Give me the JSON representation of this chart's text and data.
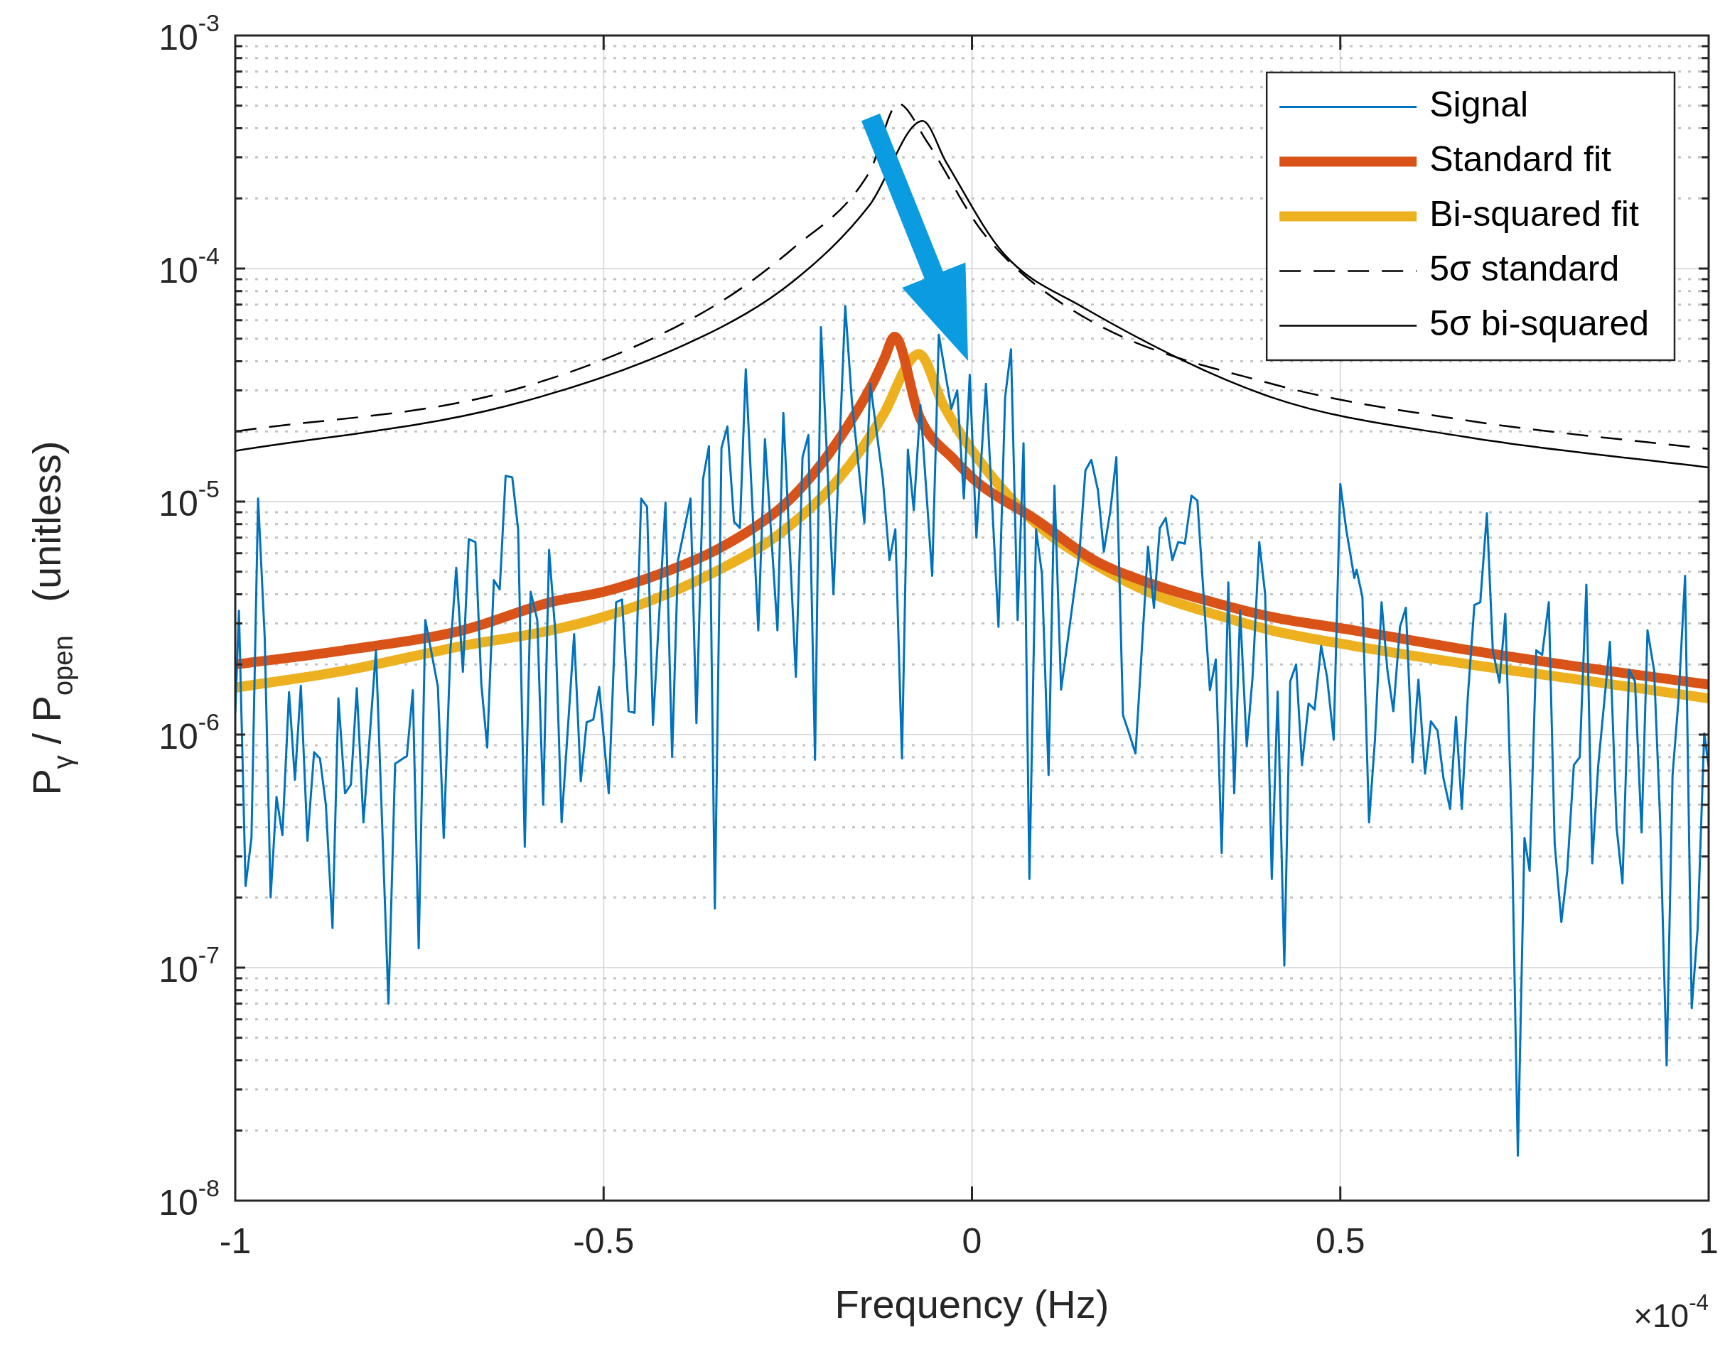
{
  "chart_data": {
    "type": "line",
    "xlabel": "Frequency (Hz)",
    "ylabel": "P$_{γ}$ / P$_{open}$   (unitless)",
    "annotations": [
      "×10$^{-4}$"
    ],
    "xlim": [
      -1,
      1
    ],
    "xticks": [
      -1,
      -0.5,
      0,
      0.5,
      1
    ],
    "ylim": [
      1e-08,
      0.001
    ],
    "yticks": [
      {
        "value": 1e-08,
        "label": "10$^{-8}$"
      },
      {
        "value": 2e-08,
        "label": null
      },
      {
        "value": 3e-08,
        "label": null
      },
      {
        "value": 4e-08,
        "label": null
      },
      {
        "value": 5e-08,
        "label": null
      },
      {
        "value": 6e-08,
        "label": null
      },
      {
        "value": 7e-08,
        "label": null
      },
      {
        "value": 8e-08,
        "label": null
      },
      {
        "value": 9e-08,
        "label": null
      },
      {
        "value": 1e-07,
        "label": "10$^{-7}$"
      },
      {
        "value": 2e-07,
        "label": null
      },
      {
        "value": 3e-07,
        "label": null
      },
      {
        "value": 4e-07,
        "label": null
      },
      {
        "value": 5e-07,
        "label": null
      },
      {
        "value": 6e-07,
        "label": null
      },
      {
        "value": 7e-07,
        "label": null
      },
      {
        "value": 8e-07,
        "label": null
      },
      {
        "value": 9e-07,
        "label": null
      },
      {
        "value": 1e-06,
        "label": "10$^{-6}$"
      },
      {
        "value": 2e-06,
        "label": null
      },
      {
        "value": 3e-06,
        "label": null
      },
      {
        "value": 4e-06,
        "label": null
      },
      {
        "value": 5e-06,
        "label": null
      },
      {
        "value": 6e-06,
        "label": null
      },
      {
        "value": 7e-06,
        "label": null
      },
      {
        "value": 8e-06,
        "label": null
      },
      {
        "value": 9e-06,
        "label": null
      },
      {
        "value": 1e-05,
        "label": "10$^{-5}$"
      },
      {
        "value": 2e-05,
        "label": null
      },
      {
        "value": 3e-05,
        "label": null
      },
      {
        "value": 4e-05,
        "label": null
      },
      {
        "value": 5e-05,
        "label": null
      },
      {
        "value": 6e-05,
        "label": null
      },
      {
        "value": 7e-05,
        "label": null
      },
      {
        "value": 8e-05,
        "label": null
      },
      {
        "value": 9e-05,
        "label": null
      },
      {
        "value": 0.0001,
        "label": "10$^{-4}$"
      },
      {
        "value": 0.0002,
        "label": null
      },
      {
        "value": 0.0003,
        "label": null
      },
      {
        "value": 0.0004,
        "label": null
      },
      {
        "value": 0.0005,
        "label": null
      },
      {
        "value": 0.0006,
        "label": null
      },
      {
        "value": 0.0007,
        "label": null
      },
      {
        "value": 0.0008,
        "label": null
      },
      {
        "value": 0.0009,
        "label": null
      },
      {
        "value": 0.001,
        "label": "10$^{-3}$"
      }
    ],
    "log": "y",
    "grid": true,
    "legend": "top right",
    "marker": "none",
    "series": [
      {
        "name": "Signal",
        "color": "#0072bd",
        "line_style": "solid",
        "x": [
          -1.0,
          -0.995,
          -0.986,
          -0.978,
          -0.969,
          -0.96,
          -0.952,
          -0.944,
          -0.936,
          -0.927,
          -0.919,
          -0.911,
          -0.902,
          -0.893,
          -0.885,
          -0.877,
          -0.868,
          -0.86,
          -0.851,
          -0.843,
          -0.835,
          -0.826,
          -0.809,
          -0.792,
          -0.783,
          -0.767,
          -0.759,
          -0.751,
          -0.742,
          -0.725,
          -0.717,
          -0.708,
          -0.7,
          -0.691,
          -0.683,
          -0.674,
          -0.666,
          -0.658,
          -0.649,
          -0.641,
          -0.633,
          -0.624,
          -0.616,
          -0.607,
          -0.599,
          -0.59,
          -0.582,
          -0.574,
          -0.565,
          -0.557,
          -0.54,
          -0.531,
          -0.523,
          -0.514,
          -0.506,
          -0.493,
          -0.483,
          -0.475,
          -0.466,
          -0.458,
          -0.449,
          -0.441,
          -0.433,
          -0.416,
          -0.407,
          -0.399,
          -0.382,
          -0.374,
          -0.365,
          -0.357,
          -0.349,
          -0.34,
          -0.332,
          -0.323,
          -0.315,
          -0.307,
          -0.29,
          -0.281,
          -0.264,
          -0.256,
          -0.239,
          -0.23,
          -0.222,
          -0.213,
          -0.205,
          -0.188,
          -0.172,
          -0.163,
          -0.146,
          -0.138,
          -0.121,
          -0.112,
          -0.104,
          -0.095,
          -0.087,
          -0.079,
          -0.07,
          -0.054,
          -0.045,
          -0.028,
          -0.02,
          -0.011,
          -0.003,
          0.006,
          0.019,
          0.036,
          0.045,
          0.053,
          0.062,
          0.07,
          0.078,
          0.087,
          0.095,
          0.104,
          0.112,
          0.121,
          0.129,
          0.146,
          0.154,
          0.162,
          0.171,
          0.179,
          0.188,
          0.196,
          0.205,
          0.213,
          0.222,
          0.239,
          0.247,
          0.255,
          0.263,
          0.272,
          0.28,
          0.289,
          0.298,
          0.306,
          0.323,
          0.331,
          0.339,
          0.348,
          0.356,
          0.364,
          0.373,
          0.381,
          0.39,
          0.398,
          0.407,
          0.415,
          0.424,
          0.432,
          0.44,
          0.448,
          0.457,
          0.465,
          0.474,
          0.482,
          0.491,
          0.5,
          0.508,
          0.519,
          0.522,
          0.53,
          0.539,
          0.547,
          0.556,
          0.564,
          0.572,
          0.581,
          0.589,
          0.598,
          0.606,
          0.615,
          0.623,
          0.632,
          0.64,
          0.649,
          0.657,
          0.665,
          0.673,
          0.682,
          0.69,
          0.699,
          0.707,
          0.716,
          0.724,
          0.733,
          0.741,
          0.75,
          0.757,
          0.766,
          0.774,
          0.783,
          0.791,
          0.8,
          0.808,
          0.817,
          0.825,
          0.834,
          0.842,
          0.85,
          0.866,
          0.875,
          0.883,
          0.892,
          0.9,
          0.909,
          0.917,
          0.926,
          0.934,
          0.943,
          0.951,
          0.959,
          0.968,
          0.977,
          0.985,
          0.994,
          1.0
        ],
        "values": [
          1.24e-06,
          3.4e-06,
          2.24e-07,
          3.6e-07,
          1.03e-05,
          2.6e-06,
          2e-07,
          5.4e-07,
          3.7e-07,
          1.52e-06,
          6.4e-07,
          1.62e-06,
          3.5e-07,
          8.4e-07,
          7.9e-07,
          5e-07,
          1.48e-07,
          1.43e-06,
          5.6e-07,
          6.1e-07,
          1.58e-06,
          4.2e-07,
          2.3e-06,
          7e-08,
          7.5e-07,
          8.1e-07,
          1.55e-06,
          1.21e-07,
          3.1e-06,
          1.61e-06,
          3.6e-07,
          2.3e-06,
          5.2e-06,
          1.86e-06,
          6.9e-06,
          6.7e-06,
          1.65e-06,
          8.8e-07,
          4.6e-06,
          4.2e-06,
          1.29e-05,
          1.27e-05,
          7.6e-06,
          3.3e-07,
          4.1e-06,
          3.1e-06,
          5e-07,
          6.2e-06,
          2.6e-06,
          4.2e-07,
          2.7e-06,
          6.3e-07,
          1.13e-06,
          1.16e-06,
          1.6e-06,
          5.6e-07,
          3.7e-06,
          3.8e-06,
          1.26e-06,
          1.24e-06,
          1.03e-05,
          9.5e-06,
          1.1e-06,
          9.9e-06,
          8e-07,
          5.6e-06,
          1.03e-05,
          1.12e-06,
          1.25e-05,
          1.73e-05,
          1.79e-07,
          1.7e-05,
          2.1e-05,
          8.2e-06,
          7.7e-06,
          3.7e-05,
          2.8e-06,
          1.85e-05,
          2.8e-06,
          2.4e-05,
          1.77e-06,
          1.55e-05,
          1.93e-05,
          7.8e-07,
          5.6e-05,
          4e-06,
          6.9e-05,
          2.7e-05,
          8.1e-06,
          3.2e-05,
          1.25e-05,
          5.6e-06,
          7.6e-06,
          7.9e-07,
          1.67e-05,
          9.2e-06,
          2.6e-05,
          4.8e-06,
          5.2e-05,
          2.5e-05,
          3e-05,
          1.03e-05,
          3.5e-05,
          7e-06,
          3.2e-05,
          2.9e-06,
          2.8e-05,
          4.5e-05,
          3.1e-06,
          1.78e-05,
          2.4e-07,
          7.6e-06,
          4.9e-06,
          6.7e-07,
          1.17e-05,
          1.56e-06,
          2.4e-06,
          6.1e-06,
          1.36e-05,
          1.51e-05,
          1.12e-05,
          6.1e-06,
          9.2e-06,
          1.55e-05,
          1.21e-06,
          1.02e-06,
          8.3e-07,
          6.4e-06,
          3.5e-06,
          7.7e-06,
          8.5e-06,
          5.6e-06,
          6.7e-06,
          6.6e-06,
          1.06e-05,
          1.01e-05,
          1.55e-06,
          2.1e-06,
          3.1e-07,
          4.5e-06,
          5.6e-07,
          3.4e-06,
          8.9e-07,
          1.78e-06,
          6.7e-06,
          4e-06,
          2.4e-07,
          1.53e-06,
          1.02e-07,
          1.69e-06,
          2e-06,
          7.4e-07,
          1.36e-06,
          1.28e-06,
          2.4e-06,
          1.77e-06,
          9.5e-07,
          1.19e-05,
          7.6e-06,
          4.7e-06,
          5.1e-06,
          3.9e-06,
          4.2e-07,
          9.5e-07,
          3.7e-06,
          1.88e-06,
          1.26e-06,
          2.9e-06,
          3.5e-06,
          7.6e-07,
          1.72e-06,
          6.8e-07,
          1.14e-06,
          1.04e-06,
          6.5e-07,
          4.8e-07,
          1.19e-06,
          4.8e-07,
          1.44e-06,
          3.6e-06,
          3.7e-06,
          8.9e-06,
          2.3e-06,
          1.67e-06,
          3.3e-06,
          3.7e-07,
          1.56e-08,
          3.6e-07,
          2.6e-07,
          2.3e-06,
          2.2e-06,
          3.7e-06,
          3.4e-07,
          1.57e-07,
          2.6e-07,
          7.4e-07,
          8e-07,
          4.4e-06,
          2.8e-07,
          7.3e-07,
          2.5e-06,
          4e-07,
          2.3e-07,
          1.9e-06,
          1.69e-06,
          3.8e-07,
          2.8e-06,
          1.88e-06,
          4.4e-07,
          3.8e-08,
          6.7e-07,
          1.4e-06,
          4.8e-06,
          6.7e-08,
          1.46e-07,
          1.01e-06,
          7.3e-07
        ]
      },
      {
        "name": "Standard fit",
        "color": "#d95319",
        "line_style": "solid",
        "x": [
          -1,
          -0.852,
          -0.692,
          -0.572,
          -0.5,
          -0.423,
          -0.343,
          -0.263,
          -0.223,
          -0.183,
          -0.135,
          -0.119,
          -0.105,
          -0.071,
          -0.023,
          0.01,
          0.086,
          0.166,
          0.247,
          0.327,
          0.407,
          0.519,
          0.676,
          0.836,
          1
        ],
        "values": [
          2e-06,
          2.3e-06,
          2.8e-06,
          3.7e-06,
          4.1e-06,
          4.9e-06,
          6.3e-06,
          9.2e-06,
          1.23e-05,
          1.8e-05,
          3.2e-05,
          4.1e-05,
          5.1e-05,
          2.3e-05,
          1.5e-05,
          1.19e-05,
          8.4e-06,
          5.6e-06,
          4.4e-06,
          3.7e-06,
          3.2e-06,
          2.8e-06,
          2.3e-06,
          1.93e-06,
          1.64e-06
        ]
      },
      {
        "name": "Bi-squared fit",
        "color": "#edb120",
        "line_style": "solid",
        "x": [
          -1,
          -0.852,
          -0.692,
          -0.572,
          -0.5,
          -0.423,
          -0.343,
          -0.263,
          -0.183,
          -0.119,
          -0.087,
          -0.072,
          -0.039,
          0.01,
          0.086,
          0.166,
          0.247,
          0.327,
          0.407,
          0.519,
          0.676,
          0.836,
          1
        ],
        "values": [
          1.59e-06,
          1.88e-06,
          2.4e-06,
          2.8e-06,
          3.2e-06,
          3.9e-06,
          5.1e-06,
          7.2e-06,
          1.23e-05,
          2.4e-05,
          3.9e-05,
          4.3e-05,
          2.6e-05,
          1.5e-05,
          8.1e-06,
          5.4e-06,
          4e-06,
          3.3e-06,
          2.8e-06,
          2.4e-06,
          2e-06,
          1.7e-06,
          1.43e-06
        ]
      },
      {
        "name": "5σ standard",
        "color": "#000000",
        "line_style": "dashed",
        "x": [
          -1,
          -0.632,
          -0.372,
          -0.243,
          -0.139,
          -0.1,
          -0.061,
          0.017,
          0.148,
          0.407,
          0.667,
          1
        ],
        "values": [
          2e-05,
          2.96e-05,
          6.3e-05,
          0.000122,
          0.00026,
          0.00051,
          0.00035,
          0.00014,
          6.3e-05,
          3.2e-05,
          2.24e-05,
          1.68e-05
        ]
      },
      {
        "name": "5σ bi-squared",
        "color": "#000000",
        "line_style": "solid",
        "x": [
          -1,
          -0.632,
          -0.372,
          -0.243,
          -0.139,
          -0.067,
          -0.035,
          0.043,
          0.148,
          0.407,
          0.667,
          1
        ],
        "values": [
          1.65e-05,
          2.57e-05,
          5e-05,
          8.8e-05,
          0.000187,
          0.00043,
          0.000286,
          0.000116,
          6.9e-05,
          2.8e-05,
          1.9e-05,
          1.4e-05
        ]
      }
    ]
  }
}
